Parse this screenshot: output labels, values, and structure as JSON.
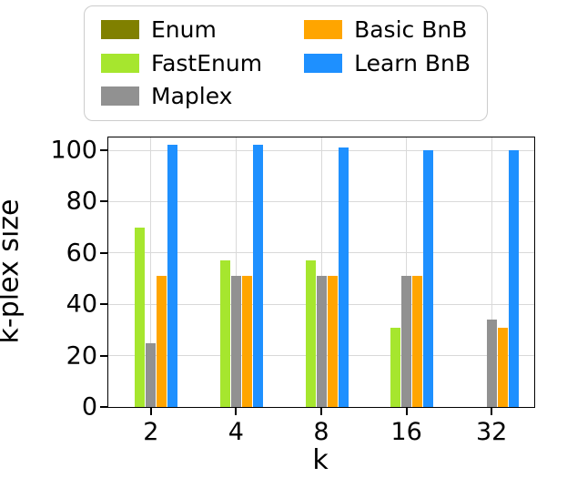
{
  "chart_data": {
    "type": "bar",
    "title": "",
    "xlabel": "k",
    "ylabel": "k-plex size",
    "categories": [
      "2",
      "4",
      "8",
      "16",
      "32"
    ],
    "series": [
      {
        "name": "Enum",
        "color": "#808000",
        "values": [
          0,
          0,
          0,
          0,
          0
        ]
      },
      {
        "name": "FastEnum",
        "color": "#a6e62e",
        "values": [
          70,
          57,
          57,
          31,
          0
        ]
      },
      {
        "name": "Maplex",
        "color": "#919191",
        "values": [
          25,
          51,
          51,
          51,
          34
        ]
      },
      {
        "name": "Basic BnB",
        "color": "#ffa500",
        "values": [
          51,
          51,
          51,
          51,
          31
        ]
      },
      {
        "name": "Learn BnB",
        "color": "#1e90ff",
        "values": [
          102,
          102,
          101,
          100,
          100
        ]
      }
    ],
    "yticks": [
      0,
      20,
      40,
      60,
      80,
      100
    ],
    "ylim": [
      0,
      105
    ],
    "grid": true,
    "legend_position": "top"
  }
}
